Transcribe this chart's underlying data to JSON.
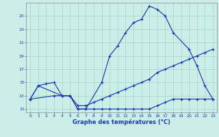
{
  "bg": "#cceee8",
  "grid_color": "#aad8d0",
  "lc": "#1a3ab0",
  "xlabel": "Graphe des températures (°C)",
  "main_x": [
    0,
    1,
    4,
    5,
    6,
    7,
    9,
    10,
    11,
    12,
    13,
    14,
    15,
    16,
    17,
    18,
    20,
    21,
    22,
    23
  ],
  "main_y": [
    12.5,
    14.5,
    13.0,
    13.0,
    11.0,
    11.0,
    15.0,
    19.0,
    20.5,
    22.5,
    24.0,
    24.5,
    26.5,
    26.0,
    25.0,
    22.5,
    20.0,
    17.5,
    14.5,
    12.5
  ],
  "line2_x": [
    0,
    1,
    2,
    3,
    4,
    5,
    6,
    7,
    8,
    9,
    10,
    11,
    12,
    13,
    14,
    15,
    16,
    17,
    18,
    19,
    20,
    21,
    22,
    23
  ],
  "line2_y": [
    12.5,
    14.5,
    14.8,
    15.0,
    13.0,
    13.0,
    11.5,
    11.5,
    12.0,
    12.5,
    13.0,
    13.5,
    14.0,
    14.5,
    15.0,
    15.5,
    16.5,
    17.0,
    17.5,
    18.0,
    18.5,
    19.0,
    19.5,
    20.0
  ],
  "line3_x": [
    0,
    3,
    4,
    5,
    6,
    7,
    8,
    9,
    10,
    11,
    12,
    13,
    14,
    15,
    16,
    17,
    18,
    19,
    20,
    21,
    22,
    23
  ],
  "line3_y": [
    12.5,
    13.0,
    13.0,
    13.0,
    11.0,
    11.0,
    11.0,
    11.0,
    11.0,
    11.0,
    11.0,
    11.0,
    11.0,
    11.0,
    11.5,
    12.0,
    12.5,
    12.5,
    12.5,
    12.5,
    12.5,
    12.5
  ],
  "ylim": [
    10.5,
    27.0
  ],
  "xlim": [
    -0.5,
    23.5
  ],
  "yticks": [
    11,
    13,
    15,
    17,
    19,
    21,
    23,
    25
  ],
  "xticks": [
    0,
    1,
    2,
    3,
    4,
    5,
    6,
    7,
    8,
    9,
    10,
    11,
    12,
    13,
    14,
    15,
    16,
    17,
    18,
    19,
    20,
    21,
    22,
    23
  ]
}
